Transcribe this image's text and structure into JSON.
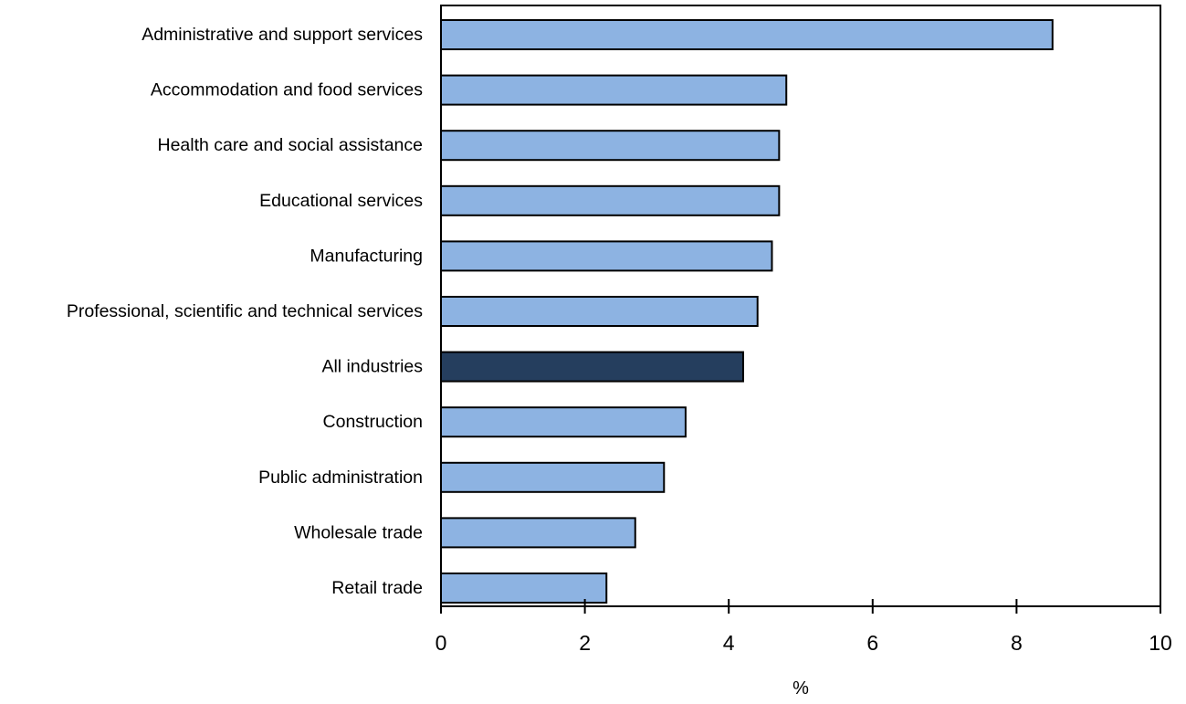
{
  "chart_data": {
    "type": "bar",
    "orientation": "horizontal",
    "categories": [
      "Administrative and support services",
      "Accommodation and food services",
      "Health care and social assistance",
      "Educational services",
      "Manufacturing",
      "Professional, scientific and technical services",
      "All industries",
      "Construction",
      "Public administration",
      "Wholesale trade",
      "Retail trade"
    ],
    "values": [
      8.5,
      4.8,
      4.7,
      4.7,
      4.6,
      4.4,
      4.2,
      3.4,
      3.1,
      2.7,
      2.3
    ],
    "highlight_category": "All industries",
    "title": "",
    "xlabel": "%",
    "ylabel": "",
    "xlim": [
      0,
      10
    ],
    "xticks": [
      0,
      2,
      4,
      6,
      8,
      10
    ],
    "grid": false,
    "legend": "none",
    "colors": {
      "bar": "#8DB3E2",
      "highlight_bar": "#253E5E",
      "bar_edge": "#000000",
      "axis": "#000000"
    }
  }
}
